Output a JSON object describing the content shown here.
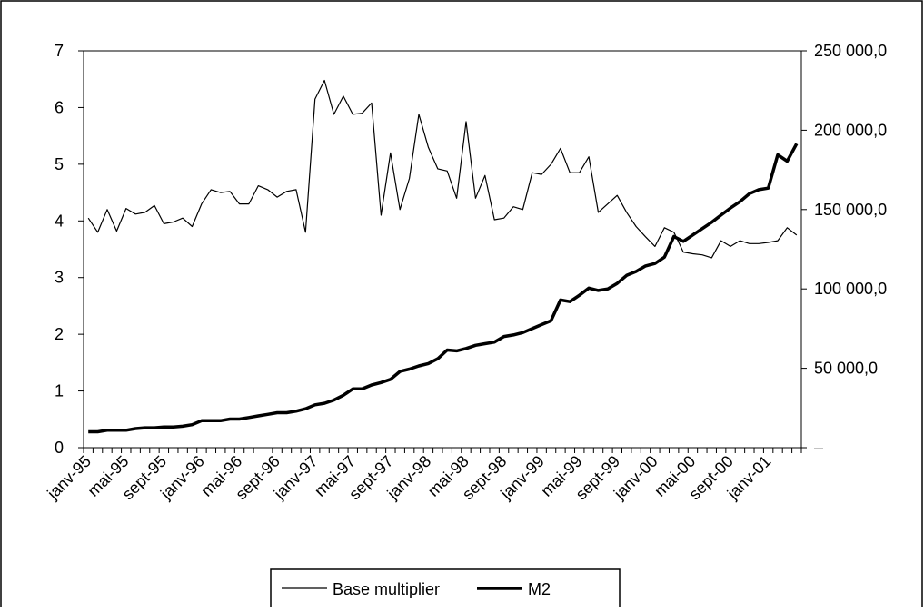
{
  "chart_data": {
    "type": "line",
    "categories": [
      "janv-95",
      null,
      null,
      null,
      "mai-95",
      null,
      null,
      null,
      "sept-95",
      null,
      null,
      null,
      "janv-96",
      null,
      null,
      null,
      "mai-96",
      null,
      null,
      null,
      "sept-96",
      null,
      null,
      null,
      "janv-97",
      null,
      null,
      null,
      "mai-97",
      null,
      null,
      null,
      "sept-97",
      null,
      null,
      null,
      "janv-98",
      null,
      null,
      null,
      "mai-98",
      null,
      null,
      null,
      "sept-98",
      null,
      null,
      null,
      "janv-99",
      null,
      null,
      null,
      "mai-99",
      null,
      null,
      null,
      "sept-99",
      null,
      null,
      null,
      "janv-00",
      null,
      null,
      null,
      "mai-00",
      null,
      null,
      null,
      "sept-00",
      null,
      null,
      null,
      "janv-01",
      null,
      null,
      null
    ],
    "series": [
      {
        "name": "Base multiplier",
        "color": "#000000",
        "values": [
          4.05,
          3.8,
          4.2,
          3.82,
          4.22,
          4.12,
          4.15,
          4.27,
          3.95,
          3.98,
          4.05,
          3.9,
          4.3,
          4.55,
          4.5,
          4.52,
          4.3,
          4.3,
          4.62,
          4.55,
          4.42,
          4.52,
          4.55,
          3.8,
          6.15,
          6.48,
          5.88,
          6.2,
          5.88,
          5.9,
          6.08,
          4.1,
          5.2,
          4.2,
          4.75,
          5.88,
          5.3,
          4.92,
          4.88,
          4.4,
          5.75,
          4.4,
          4.8,
          4.02,
          4.05,
          4.25,
          4.2,
          4.85,
          4.82,
          5.0,
          5.28,
          4.85,
          4.85,
          5.13,
          4.15,
          4.3,
          4.45,
          4.15,
          3.9,
          3.72,
          3.55,
          3.88,
          3.8,
          3.45,
          3.42,
          3.4,
          3.35,
          3.65,
          3.55,
          3.65,
          3.6,
          3.6,
          3.62,
          3.65,
          3.88,
          3.75
        ]
      },
      {
        "name": "M2",
        "color": "#000000",
        "axis": "y2",
        "values": [
          10000,
          10000,
          11000,
          11000,
          11000,
          12000,
          12500,
          12500,
          13000,
          13000,
          13500,
          14500,
          17000,
          17000,
          17000,
          18000,
          18000,
          19000,
          20000,
          21000,
          22000,
          22000,
          23000,
          24500,
          27000,
          28000,
          30000,
          33000,
          37000,
          37000,
          39500,
          41000,
          43000,
          48000,
          49500,
          51500,
          53000,
          56000,
          61500,
          61000,
          62500,
          64500,
          65500,
          66500,
          70000,
          71000,
          72500,
          75000,
          77500,
          80000,
          93000,
          92000,
          96000,
          100500,
          99000,
          100000,
          103500,
          108500,
          111000,
          114500,
          116000,
          120000,
          133000,
          130000,
          134000,
          138000,
          142000,
          146500,
          151000,
          155000,
          160000,
          162500,
          163500,
          184500,
          180500,
          191500
        ]
      }
    ],
    "ylim": [
      0,
      7
    ],
    "yticks": [
      0,
      1,
      2,
      3,
      4,
      5,
      6,
      7
    ],
    "y2lim": [
      0,
      250000
    ],
    "y2ticks": [
      {
        "value": 0,
        "label": "–"
      },
      {
        "value": 50000,
        "label": "50 000,0"
      },
      {
        "value": 100000,
        "label": "100 000,0"
      },
      {
        "value": 150000,
        "label": "150 000,0"
      },
      {
        "value": 200000,
        "label": "200 000,0"
      },
      {
        "value": 250000,
        "label": "250 000,0"
      }
    ],
    "legend": "bottom"
  }
}
